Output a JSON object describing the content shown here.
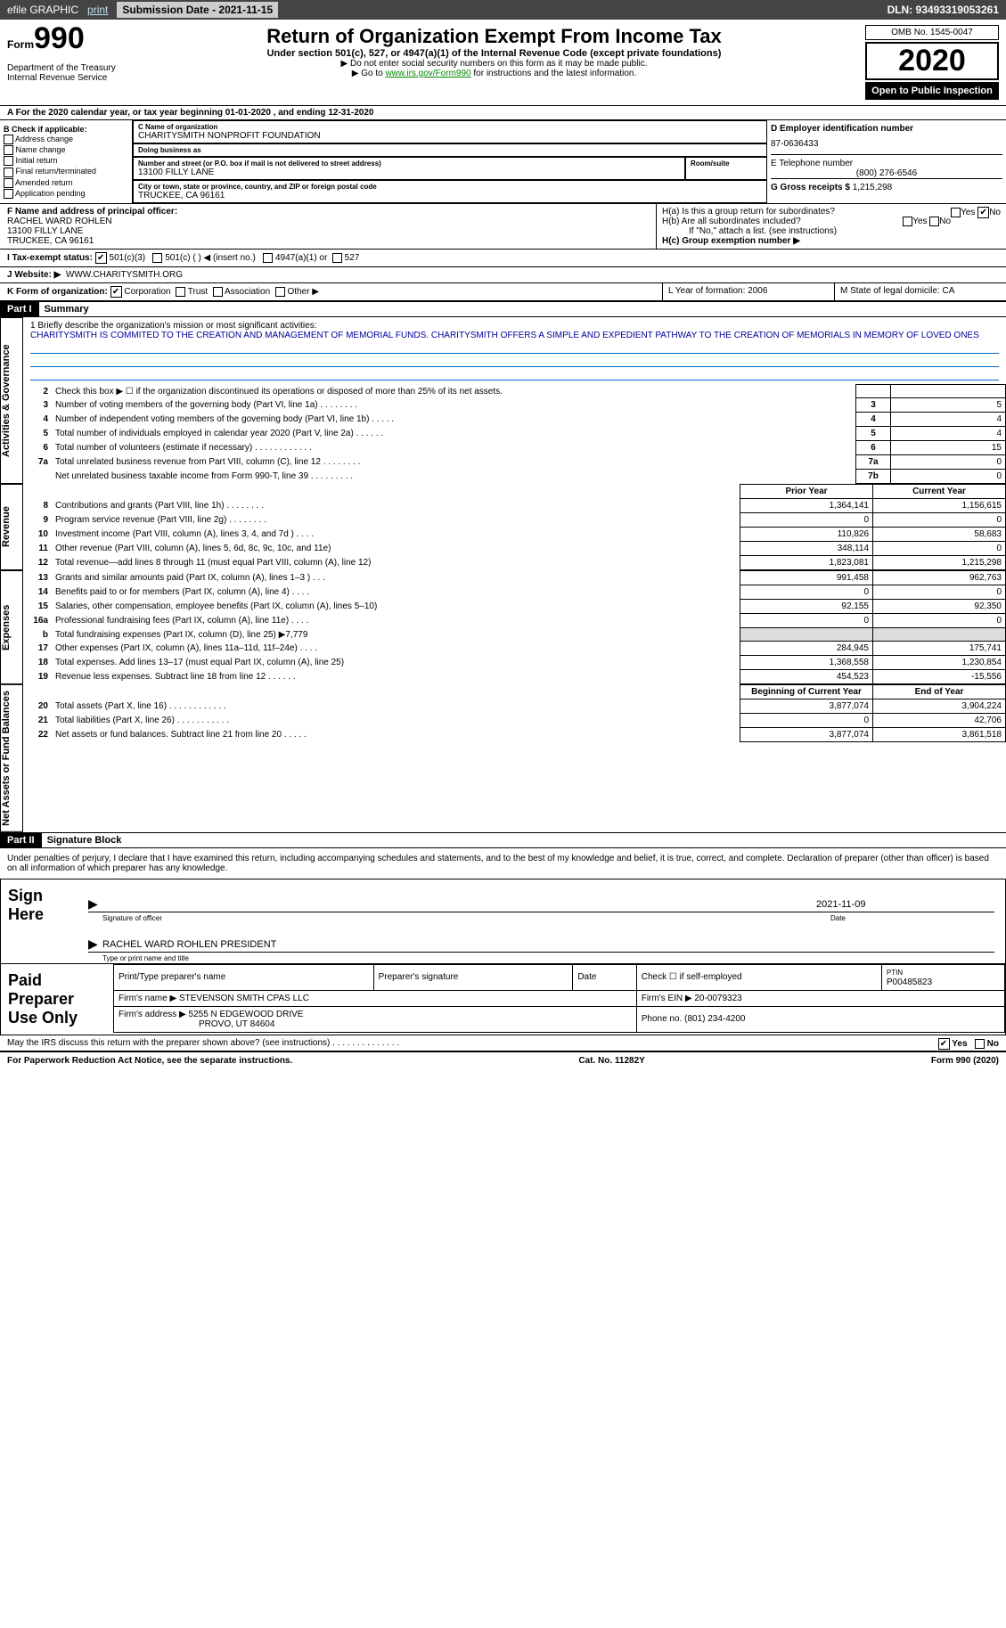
{
  "topbar": {
    "efile": "efile GRAPHIC",
    "print": "print",
    "sub_label": "Submission Date - 2021-11-15",
    "dln": "DLN: 93493319053261"
  },
  "header": {
    "form_small": "Form",
    "form_big": "990",
    "title": "Return of Organization Exempt From Income Tax",
    "sub": "Under section 501(c), 527, or 4947(a)(1) of the Internal Revenue Code (except private foundations)",
    "note1": "▶ Do not enter social security numbers on this form as it may be made public.",
    "note2": "▶ Go to www.irs.gov/Form990 for instructions and the latest information.",
    "dept": "Department of the Treasury\nInternal Revenue Service",
    "omb": "OMB No. 1545-0047",
    "year": "2020",
    "open": "Open to Public Inspection"
  },
  "taxyear": "A For the 2020 calendar year, or tax year beginning 01-01-2020 , and ending 12-31-2020",
  "boxB": {
    "title": "B Check if applicable:",
    "items": [
      "Address change",
      "Name change",
      "Initial return",
      "Final return/terminated",
      "Amended return",
      "Application pending"
    ]
  },
  "boxC": {
    "name_lbl": "C Name of organization",
    "name": "CHARITYSMITH NONPROFIT FOUNDATION",
    "dba_lbl": "Doing business as",
    "dba": "",
    "addr_lbl": "Number and street (or P.O. box if mail is not delivered to street address)",
    "addr": "13100 FILLY LANE",
    "room_lbl": "Room/suite",
    "room": "",
    "city_lbl": "City or town, state or province, country, and ZIP or foreign postal code",
    "city": "TRUCKEE, CA  96161"
  },
  "boxD": {
    "lbl": "D Employer identification number",
    "ein": "87-0636433",
    "tel_lbl": "E Telephone number",
    "tel": "(800) 276-6546",
    "gross_lbl": "G Gross receipts $",
    "gross": "1,215,298"
  },
  "boxF": {
    "lbl": "F Name and address of principal officer:",
    "name": "RACHEL WARD ROHLEN",
    "addr": "13100 FILLY LANE",
    "city": "TRUCKEE, CA  96161"
  },
  "boxH": {
    "a": "H(a)  Is this a group return for subordinates?",
    "a_yes": "Yes",
    "a_no": "No",
    "b": "H(b)  Are all subordinates included?",
    "b_note": "If \"No,\" attach a list. (see instructions)",
    "c": "H(c)  Group exemption number ▶"
  },
  "taxexempt": {
    "lbl": "I    Tax-exempt status:",
    "c3": "501(c)(3)",
    "cx": "501(c) (  ) ◀ (insert no.)",
    "a1": "4947(a)(1) or",
    "s527": "527"
  },
  "website": {
    "lbl": "J    Website: ▶",
    "url": "WWW.CHARITYSMITH.ORG"
  },
  "formorg": {
    "lbl": "K Form of organization:",
    "corp": "Corporation",
    "trust": "Trust",
    "assoc": "Association",
    "other": "Other ▶"
  },
  "LM": {
    "L": "L Year of formation: 2006",
    "M": "M State of legal domicile: CA"
  },
  "part1": {
    "label": "Part I",
    "title": "Summary"
  },
  "mission": {
    "q": "1   Briefly describe the organization's mission or most significant activities:",
    "text": "CHARITYSMITH IS COMMITED TO THE CREATION AND MANAGEMENT OF MEMORIAL FUNDS. CHARITYSMITH OFFERS A SIMPLE AND EXPEDIENT PATHWAY TO THE CREATION OF MEMORIALS IN MEMORY OF LOVED ONES"
  },
  "gov_lines": [
    {
      "n": "2",
      "t": "Check this box ▶ ☐  if the organization discontinued its operations or disposed of more than 25% of its net assets.",
      "box": "",
      "v": ""
    },
    {
      "n": "3",
      "t": "Number of voting members of the governing body (Part VI, line 1a)  .    .    .    .    .    .    .    .",
      "box": "3",
      "v": "5"
    },
    {
      "n": "4",
      "t": "Number of independent voting members of the governing body (Part VI, line 1b)   .    .    .    .    .",
      "box": "4",
      "v": "4"
    },
    {
      "n": "5",
      "t": "Total number of individuals employed in calendar year 2020 (Part V, line 2a)   .    .    .    .    .    .",
      "box": "5",
      "v": "4"
    },
    {
      "n": "6",
      "t": "Total number of volunteers (estimate if necessary)   .    .    .    .    .    .    .    .    .    .    .    .",
      "box": "6",
      "v": "15"
    },
    {
      "n": "7a",
      "t": "Total unrelated business revenue from Part VIII, column (C), line 12   .    .    .    .    .    .    .    .",
      "box": "7a",
      "v": "0"
    },
    {
      "n": "",
      "t": "Net unrelated business taxable income from Form 990-T, line 39   .    .    .    .    .    .    .    .    .",
      "box": "7b",
      "v": "0"
    }
  ],
  "fin": {
    "col1": "Prior Year",
    "col2": "Current Year",
    "col1b": "Beginning of Current Year",
    "col2b": "End of Year",
    "sections": [
      {
        "side": "Activities & Governance",
        "type": "gov"
      },
      {
        "side": "Revenue",
        "rows": [
          {
            "n": "8",
            "t": "Contributions and grants (Part VIII, line 1h)   .    .    .    .    .    .    .    .",
            "p": "1,364,141",
            "c": "1,156,615"
          },
          {
            "n": "9",
            "t": "Program service revenue (Part VIII, line 2g)   .    .    .    .    .    .    .    .",
            "p": "0",
            "c": "0"
          },
          {
            "n": "10",
            "t": "Investment income (Part VIII, column (A), lines 3, 4, and 7d )   .    .    .    .",
            "p": "110,826",
            "c": "58,683"
          },
          {
            "n": "11",
            "t": "Other revenue (Part VIII, column (A), lines 5, 6d, 8c, 9c, 10c, and 11e)",
            "p": "348,114",
            "c": "0"
          },
          {
            "n": "12",
            "t": "Total revenue—add lines 8 through 11 (must equal Part VIII, column (A), line 12)",
            "p": "1,823,081",
            "c": "1,215,298"
          }
        ]
      },
      {
        "side": "Expenses",
        "rows": [
          {
            "n": "13",
            "t": "Grants and similar amounts paid (Part IX, column (A), lines 1–3 )   .    .    .",
            "p": "991,458",
            "c": "962,763"
          },
          {
            "n": "14",
            "t": "Benefits paid to or for members (Part IX, column (A), line 4)   .    .    .    .",
            "p": "0",
            "c": "0"
          },
          {
            "n": "15",
            "t": "Salaries, other compensation, employee benefits (Part IX, column (A), lines 5–10)",
            "p": "92,155",
            "c": "92,350"
          },
          {
            "n": "16a",
            "t": "Professional fundraising fees (Part IX, column (A), line 11e)   .    .    .    .",
            "p": "0",
            "c": "0"
          },
          {
            "n": "b",
            "t": "Total fundraising expenses (Part IX, column (D), line 25) ▶7,779",
            "p": "",
            "c": "",
            "shade": true
          },
          {
            "n": "17",
            "t": "Other expenses (Part IX, column (A), lines 11a–11d, 11f–24e)   .    .    .    .",
            "p": "284,945",
            "c": "175,741"
          },
          {
            "n": "18",
            "t": "Total expenses. Add lines 13–17 (must equal Part IX, column (A), line 25)",
            "p": "1,368,558",
            "c": "1,230,854"
          },
          {
            "n": "19",
            "t": "Revenue less expenses. Subtract line 18 from line 12   .    .    .    .    .    .",
            "p": "454,523",
            "c": "-15,556"
          }
        ]
      },
      {
        "side": "Net Assets or Fund Balances",
        "hdr2": true,
        "rows": [
          {
            "n": "20",
            "t": "Total assets (Part X, line 16)   .    .    .    .    .    .    .    .    .    .    .    .",
            "p": "3,877,074",
            "c": "3,904,224"
          },
          {
            "n": "21",
            "t": "Total liabilities (Part X, line 26)   .    .    .    .    .    .    .    .    .    .    .",
            "p": "0",
            "c": "42,706"
          },
          {
            "n": "22",
            "t": "Net assets or fund balances. Subtract line 21 from line 20   .    .    .    .    .",
            "p": "3,877,074",
            "c": "3,861,518"
          }
        ]
      }
    ]
  },
  "part2": {
    "label": "Part II",
    "title": "Signature Block"
  },
  "sig": {
    "decl": "Under penalties of perjury, I declare that I have examined this return, including accompanying schedules and statements, and to the best of my knowledge and belief, it is true, correct, and complete. Declaration of preparer (other than officer) is based on all information of which preparer has any knowledge.",
    "sign": "Sign Here",
    "officer_cap": "Signature of officer",
    "date": "2021-11-09",
    "date_cap": "Date",
    "name": "RACHEL WARD ROHLEN  PRESIDENT",
    "name_cap": "Type or print name and title"
  },
  "prep": {
    "title": "Paid Preparer Use Only",
    "h1": "Print/Type preparer's name",
    "h2": "Preparer's signature",
    "h3": "Date",
    "h4": "Check ☐ if self-employed",
    "h5": "PTIN",
    "ptin": "P00485823",
    "firm_lbl": "Firm's name   ▶",
    "firm": "STEVENSON SMITH CPAS LLC",
    "ein_lbl": "Firm's EIN ▶",
    "ein": "20-0079323",
    "addr_lbl": "Firm's address ▶",
    "addr": "5255 N EDGEWOOD DRIVE",
    "city": "PROVO, UT  84604",
    "ph_lbl": "Phone no.",
    "ph": "(801) 234-4200",
    "discuss": "May the IRS discuss this return with the preparer shown above? (see instructions)   .    .    .    .    .    .    .    .    .    .    .    .    .    .",
    "yes": "Yes",
    "no": "No"
  },
  "footer": {
    "l": "For Paperwork Reduction Act Notice, see the separate instructions.",
    "c": "Cat. No. 11282Y",
    "r": "Form 990 (2020)"
  }
}
